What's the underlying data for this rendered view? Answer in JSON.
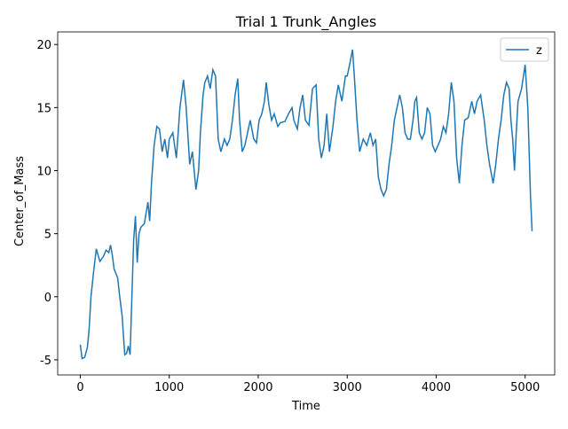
{
  "chart_data": {
    "type": "line",
    "title": "Trial 1 Trunk_Angles",
    "x_label": "Time",
    "y_label": "Center_of_Mass",
    "x": [
      0,
      20,
      50,
      80,
      100,
      120,
      150,
      180,
      220,
      260,
      290,
      320,
      340,
      360,
      380,
      420,
      440,
      470,
      500,
      520,
      540,
      560,
      580,
      600,
      620,
      640,
      660,
      680,
      720,
      760,
      780,
      800,
      830,
      860,
      890,
      920,
      950,
      980,
      1000,
      1040,
      1080,
      1120,
      1160,
      1190,
      1230,
      1260,
      1300,
      1330,
      1350,
      1380,
      1400,
      1430,
      1460,
      1490,
      1520,
      1550,
      1580,
      1620,
      1650,
      1680,
      1710,
      1740,
      1770,
      1790,
      1820,
      1850,
      1880,
      1910,
      1950,
      1980,
      2010,
      2040,
      2070,
      2090,
      2120,
      2150,
      2180,
      2220,
      2250,
      2300,
      2340,
      2380,
      2400,
      2440,
      2470,
      2500,
      2530,
      2570,
      2610,
      2650,
      2680,
      2710,
      2740,
      2770,
      2800,
      2840,
      2870,
      2900,
      2940,
      2980,
      3000,
      3030,
      3060,
      3080,
      3110,
      3140,
      3180,
      3220,
      3260,
      3290,
      3320,
      3350,
      3380,
      3410,
      3440,
      3470,
      3500,
      3530,
      3560,
      3590,
      3620,
      3650,
      3680,
      3710,
      3740,
      3760,
      3780,
      3810,
      3840,
      3870,
      3900,
      3930,
      3960,
      3990,
      4020,
      4050,
      4080,
      4110,
      4140,
      4170,
      4200,
      4230,
      4260,
      4290,
      4320,
      4360,
      4400,
      4430,
      4460,
      4500,
      4540,
      4570,
      4600,
      4640,
      4670,
      4700,
      4730,
      4760,
      4790,
      4820,
      4840,
      4860,
      4880,
      4900,
      4920,
      4960,
      5000,
      5030,
      5060,
      5078
    ],
    "series": [
      {
        "name": "z",
        "color": "#1f77b4",
        "values": [
          -3.8,
          -4.9,
          -4.8,
          -4,
          -2.5,
          0,
          2,
          3.8,
          2.8,
          3.2,
          3.7,
          3.5,
          4.1,
          3.3,
          2.2,
          1.5,
          0.2,
          -1.5,
          -4.6,
          -4.5,
          -3.9,
          -4.6,
          0,
          4.5,
          6.4,
          2.7,
          5,
          5.5,
          5.8,
          7.5,
          6,
          9,
          12,
          13.5,
          13.3,
          11.5,
          12.5,
          11,
          12.5,
          13,
          11,
          15,
          17.2,
          15,
          10.5,
          11.5,
          8.5,
          10,
          13,
          16,
          17,
          17.5,
          16.5,
          18,
          17.5,
          12.5,
          11.5,
          12.5,
          12,
          12.5,
          14,
          16,
          17.3,
          14,
          11.5,
          12,
          13,
          14,
          12.5,
          12.2,
          14,
          14.5,
          15.5,
          17,
          15.2,
          14,
          14.5,
          13.5,
          13.8,
          13.9,
          14.5,
          15,
          14,
          13.3,
          15,
          16,
          14,
          13.6,
          16.5,
          16.8,
          12.5,
          11,
          12,
          14.5,
          11.5,
          13.5,
          15.5,
          16.8,
          15.5,
          17.5,
          17.5,
          18.5,
          19.6,
          17.5,
          14,
          11.5,
          12.5,
          12,
          13,
          12,
          12.5,
          9.5,
          8.5,
          8,
          8.5,
          10.5,
          12,
          14,
          15,
          16,
          15,
          13,
          12.5,
          12.5,
          14,
          15.5,
          15.8,
          13,
          12.5,
          13,
          15,
          14.5,
          12,
          11.5,
          12,
          12.5,
          13.5,
          13,
          14.5,
          17,
          15.5,
          11,
          9,
          12,
          14,
          14.2,
          15.5,
          14.5,
          15.5,
          16,
          14,
          12,
          10.5,
          9,
          10.5,
          12.5,
          14,
          16,
          17,
          16.5,
          14,
          12.5,
          10,
          13,
          15.5,
          16.5,
          18.4,
          15,
          8,
          5.2
        ]
      }
    ],
    "xlim": [
      -254,
      5332
    ],
    "ylim": [
      -6.2,
      21.0
    ],
    "xticks": [
      0,
      1000,
      2000,
      3000,
      4000,
      5000
    ],
    "yticks": [
      -5,
      0,
      5,
      10,
      15,
      20
    ],
    "legend": "upper right"
  }
}
